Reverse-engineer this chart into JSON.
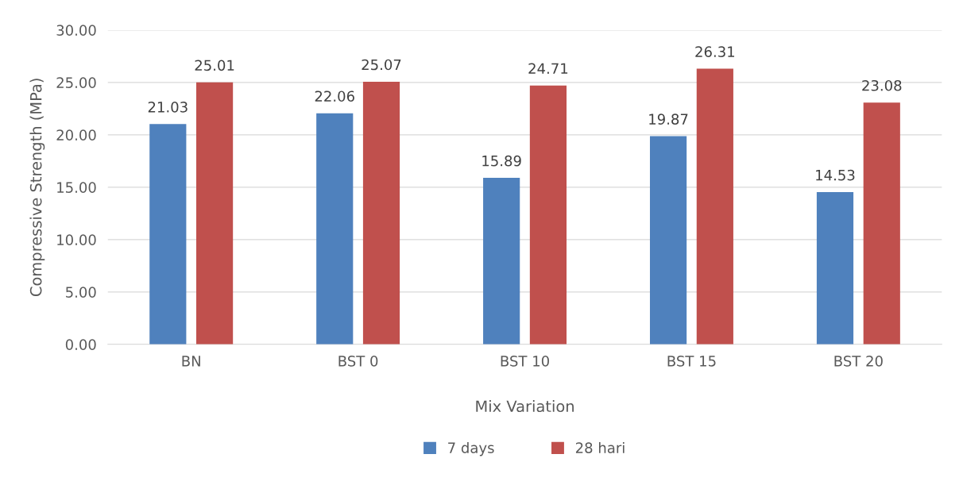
{
  "chart_data": {
    "type": "bar",
    "xlabel": "Mix Variation",
    "ylabel": "Compressive Strength (MPa)",
    "categories": [
      "BN",
      "BST 0",
      "BST 10",
      "BST 15",
      "BST 20"
    ],
    "series": [
      {
        "name": "7 days",
        "color": "#4f81bd",
        "values": [
          21.03,
          22.06,
          15.89,
          19.87,
          14.53
        ]
      },
      {
        "name": "28 hari",
        "color": "#c0504d",
        "values": [
          25.01,
          25.07,
          24.71,
          26.31,
          23.08
        ]
      }
    ],
    "ylim": [
      0,
      30
    ],
    "yticks": [
      {
        "value": 0,
        "label": "0.00"
      },
      {
        "value": 5,
        "label": "5.00"
      },
      {
        "value": 10,
        "label": "10.00"
      },
      {
        "value": 15,
        "label": "15.00"
      },
      {
        "value": 20,
        "label": "20.00"
      },
      {
        "value": 25,
        "label": "25.00"
      },
      {
        "value": 30,
        "label": "30.00"
      }
    ],
    "grid": "y",
    "legend": "bottom",
    "data_labels": true
  }
}
